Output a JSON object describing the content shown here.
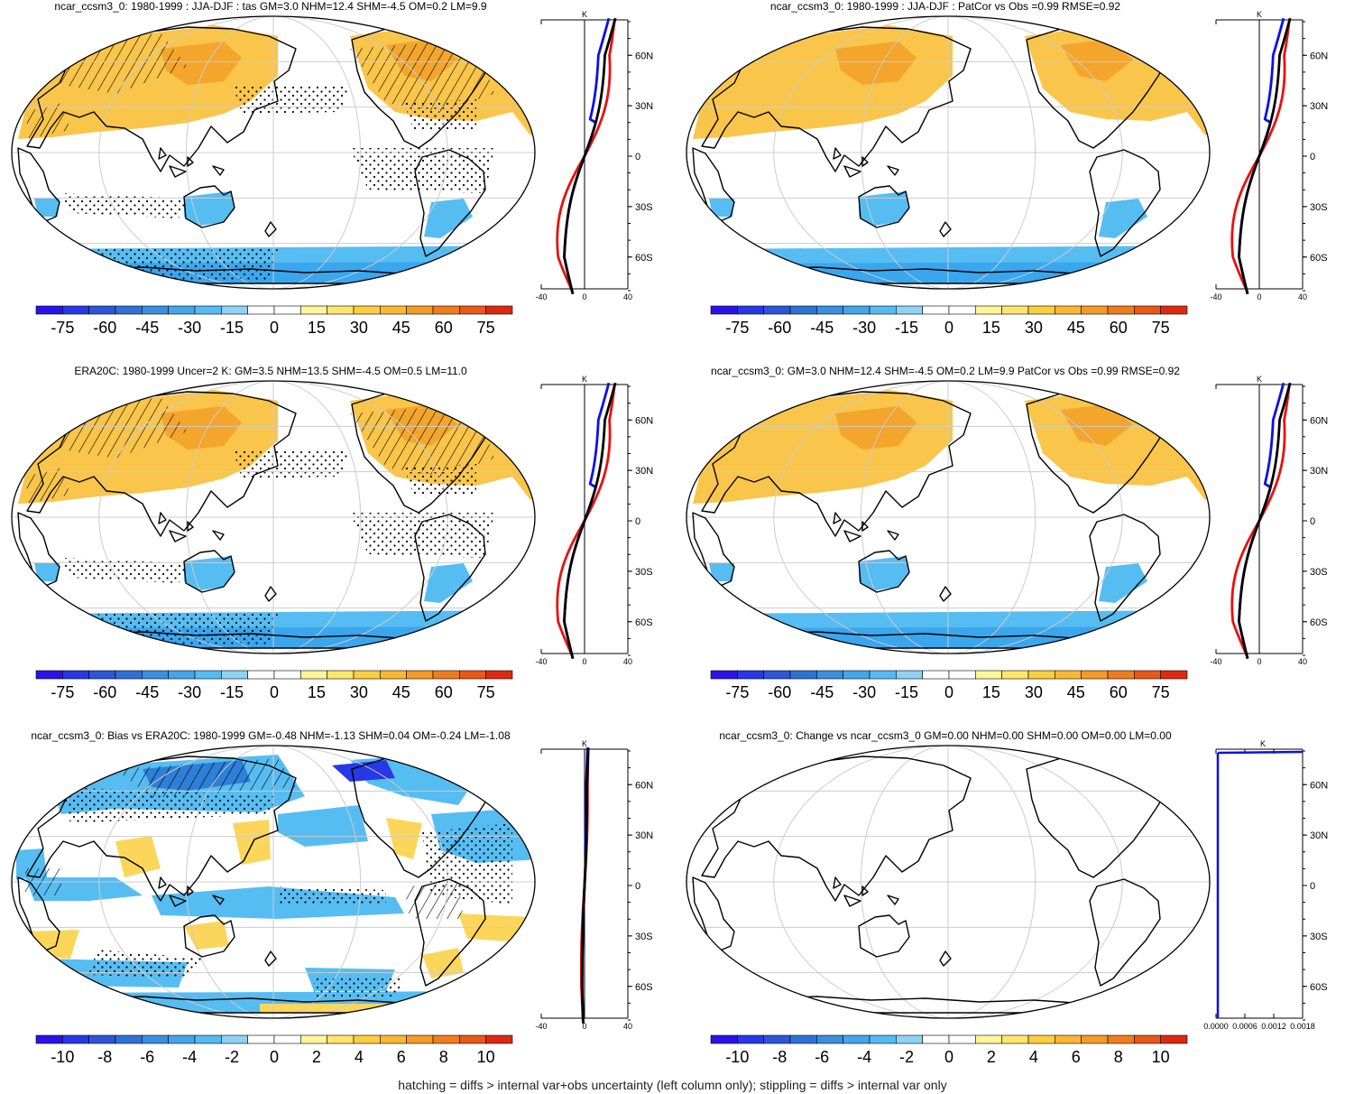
{
  "colors": {
    "colorbar": [
      "#2a13e8",
      "#2838e6",
      "#2d55d9",
      "#2f72d6",
      "#3b8fe0",
      "#45a5ea",
      "#55bbf2",
      "#8fd2f4",
      "#ffffff",
      "#ffffff",
      "#fff59a",
      "#fde66b",
      "#fbce3f",
      "#f8b833",
      "#f39b28",
      "#ee7d1e",
      "#e85818",
      "#dc2a12"
    ],
    "warm_shade": "#f9c54a",
    "warm_deep": "#f3a52c",
    "cool_shade": "#56bdf2",
    "cool_deep": "#2d7fd8",
    "zonal_model": "#000000",
    "zonal_obs": "#0a10e8",
    "zonal_other": "#e8100e",
    "coast": "#000000",
    "grid": "#cccccc"
  },
  "panels": [
    {
      "id": "model_clim",
      "title": "ncar_ccsm3_0: 1980-1999 : JJA-DJF : tas GM=3.0 NHM=12.4 SHM=-4.5 OM=0.2 LM=9.9",
      "kind": "clim",
      "hatched": true,
      "zonal_x_ticks": [
        "-40",
        "0",
        "40"
      ],
      "zonal_unit": "K",
      "lat_ticks": [
        "60N",
        "30N",
        "0",
        "30S",
        "60S"
      ],
      "colorbar_labels": [
        "-75",
        "-60",
        "-45",
        "-30",
        "-15",
        "0",
        "15",
        "30",
        "45",
        "60",
        "75"
      ]
    },
    {
      "id": "model_patcor",
      "title": "ncar_ccsm3_0: 1980-1999 : JJA-DJF : PatCor vs Obs =0.99 RMSE=0.92",
      "kind": "clim",
      "hatched": false,
      "zonal_x_ticks": [
        "-40",
        "0",
        "40"
      ],
      "zonal_unit": "K",
      "lat_ticks": [
        "60N",
        "30N",
        "0",
        "30S",
        "60S"
      ],
      "colorbar_labels": [
        "-75",
        "-60",
        "-45",
        "-30",
        "-15",
        "0",
        "15",
        "30",
        "45",
        "60",
        "75"
      ]
    },
    {
      "id": "obs_clim",
      "title": "ERA20C: 1980-1999 Uncer=2 K: GM=3.5 NHM=13.5 SHM=-4.5 OM=0.5 LM=11.0",
      "kind": "clim",
      "hatched": true,
      "zonal_x_ticks": [
        "-40",
        "0",
        "40"
      ],
      "zonal_unit": "K",
      "lat_ticks": [
        "60N",
        "30N",
        "0",
        "30S",
        "60S"
      ],
      "colorbar_labels": [
        "-75",
        "-60",
        "-45",
        "-30",
        "-15",
        "0",
        "15",
        "30",
        "45",
        "60",
        "75"
      ]
    },
    {
      "id": "model_stats",
      "title": "ncar_ccsm3_0: GM=3.0 NHM=12.4 SHM=-4.5 OM=0.2 LM=9.9 PatCor vs Obs =0.99 RMSE=0.92",
      "kind": "clim",
      "hatched": false,
      "zonal_x_ticks": [
        "-40",
        "0",
        "40"
      ],
      "zonal_unit": "K",
      "lat_ticks": [
        "60N",
        "30N",
        "0",
        "30S",
        "60S"
      ],
      "colorbar_labels": [
        "-75",
        "-60",
        "-45",
        "-30",
        "-15",
        "0",
        "15",
        "30",
        "45",
        "60",
        "75"
      ]
    },
    {
      "id": "bias",
      "title": "ncar_ccsm3_0: Bias vs ERA20C: 1980-1999 GM=-0.48 NHM=-1.13 SHM=0.04 OM=-0.24 LM=-1.08",
      "kind": "bias",
      "hatched": true,
      "zonal_x_ticks": [
        "-40",
        "0",
        "40"
      ],
      "zonal_unit": "K",
      "lat_ticks": [
        "60N",
        "30N",
        "0",
        "30S",
        "60S"
      ],
      "colorbar_labels": [
        "-10",
        "-8",
        "-6",
        "-4",
        "-2",
        "0",
        "2",
        "4",
        "6",
        "8",
        "10"
      ]
    },
    {
      "id": "change",
      "title": "ncar_ccsm3_0: Change vs ncar_ccsm3_0 GM=0.00 NHM=0.00 SHM=0.00 OM=0.00 LM=0.00",
      "kind": "change",
      "hatched": false,
      "zonal_x_ticks": [
        "0.0000",
        "0.0006",
        "0.0012",
        "0.0018"
      ],
      "zonal_unit": "K",
      "lat_ticks": [
        "60N",
        "30N",
        "0",
        "30S",
        "60S"
      ],
      "colorbar_labels": [
        "-10",
        "-8",
        "-6",
        "-4",
        "-2",
        "0",
        "2",
        "4",
        "6",
        "8",
        "10"
      ]
    }
  ],
  "footer": "hatching = diffs > internal var+obs uncertainty (left column only); stippling = diffs > internal var only"
}
